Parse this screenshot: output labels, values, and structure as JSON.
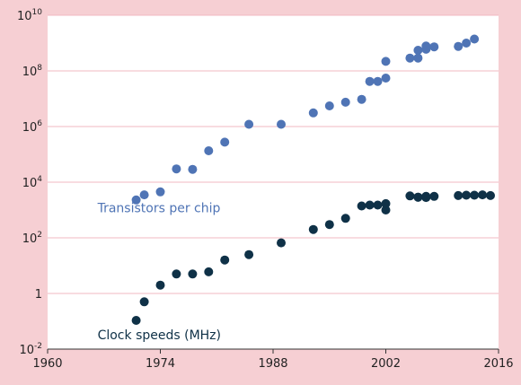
{
  "chart_data": {
    "type": "scatter",
    "title": "",
    "xlabel": "",
    "ylabel": "",
    "x_range": [
      1960,
      2016
    ],
    "y_range_log10": [
      -2,
      10
    ],
    "y_scale": "log",
    "grid": true,
    "x_ticks": [
      "1960",
      "1974",
      "1988",
      "2002",
      "2016"
    ],
    "y_ticks": [
      {
        "base": "10",
        "exp": "10",
        "log": 10
      },
      {
        "base": "10",
        "exp": "8",
        "log": 8
      },
      {
        "base": "10",
        "exp": "6",
        "log": 6
      },
      {
        "base": "10",
        "exp": "4",
        "log": 4
      },
      {
        "base": "10",
        "exp": "2",
        "log": 2
      },
      {
        "base": "1",
        "exp": "",
        "log": 0
      },
      {
        "base": "10",
        "exp": "-2",
        "log": -2
      }
    ],
    "series": [
      {
        "name": "Transistors per chip",
        "color": "#4f74b5",
        "points": [
          [
            1971,
            2300
          ],
          [
            1972,
            3500
          ],
          [
            1974,
            4500
          ],
          [
            1976,
            30000
          ],
          [
            1978,
            29000
          ],
          [
            1980,
            135000
          ],
          [
            1982,
            275000
          ],
          [
            1985,
            1200000
          ],
          [
            1989,
            1200000
          ],
          [
            1993,
            3100000
          ],
          [
            1995,
            5500000
          ],
          [
            1997,
            7500000
          ],
          [
            1999,
            9500000
          ],
          [
            2000,
            42000000
          ],
          [
            2001,
            42000000
          ],
          [
            2002,
            55000000
          ],
          [
            2002,
            220000000
          ],
          [
            2005,
            290000000
          ],
          [
            2006,
            290000000
          ],
          [
            2006,
            550000000
          ],
          [
            2007,
            600000000
          ],
          [
            2007,
            780000000
          ],
          [
            2008,
            730000000
          ],
          [
            2011,
            760000000
          ],
          [
            2012,
            1000000000
          ],
          [
            2013,
            1400000000
          ]
        ]
      },
      {
        "name": "Clock speeds (MHz)",
        "color": "#0f3147",
        "points": [
          [
            1971,
            0.108
          ],
          [
            1972,
            0.5
          ],
          [
            1974,
            2
          ],
          [
            1976,
            5
          ],
          [
            1978,
            5
          ],
          [
            1980,
            6
          ],
          [
            1982,
            16
          ],
          [
            1985,
            25
          ],
          [
            1989,
            66
          ],
          [
            1993,
            200
          ],
          [
            1995,
            300
          ],
          [
            1997,
            500
          ],
          [
            1999,
            1400
          ],
          [
            2000,
            1500
          ],
          [
            2001,
            1500
          ],
          [
            2002,
            1000
          ],
          [
            2002,
            1700
          ],
          [
            2005,
            3200
          ],
          [
            2006,
            2900
          ],
          [
            2006,
            2900
          ],
          [
            2007,
            2800
          ],
          [
            2007,
            3100
          ],
          [
            2008,
            3100
          ],
          [
            2011,
            3300
          ],
          [
            2012,
            3400
          ],
          [
            2013,
            3400
          ],
          [
            2014,
            3500
          ],
          [
            2015,
            3300
          ]
        ]
      }
    ]
  }
}
